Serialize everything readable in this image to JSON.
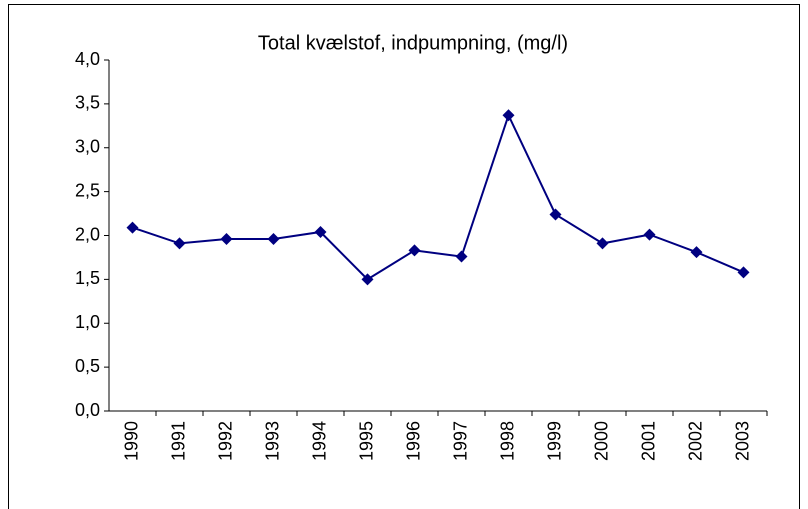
{
  "chart_data": {
    "type": "line",
    "title": "Total kvælstof, indpumpning, (mg/l)",
    "categories": [
      "1990",
      "1991",
      "1992",
      "1993",
      "1994",
      "1995",
      "1996",
      "1997",
      "1998",
      "1999",
      "2000",
      "2001",
      "2002",
      "2003"
    ],
    "values": [
      2.09,
      1.91,
      1.96,
      1.96,
      2.04,
      1.5,
      1.83,
      1.76,
      3.37,
      2.24,
      1.91,
      2.01,
      1.81,
      1.58
    ],
    "color": "#000080",
    "ylim": [
      0,
      4
    ],
    "yticks": [
      {
        "value": 0,
        "label": "0,0"
      },
      {
        "value": 0.5,
        "label": "0,5"
      },
      {
        "value": 1,
        "label": "1,0"
      },
      {
        "value": 1.5,
        "label": "1,5"
      },
      {
        "value": 2,
        "label": "2,0"
      },
      {
        "value": 2.5,
        "label": "2,5"
      },
      {
        "value": 3,
        "label": "3,0"
      },
      {
        "value": 3.5,
        "label": "3,5"
      },
      {
        "value": 4,
        "label": "4,0"
      }
    ],
    "grid": false
  }
}
